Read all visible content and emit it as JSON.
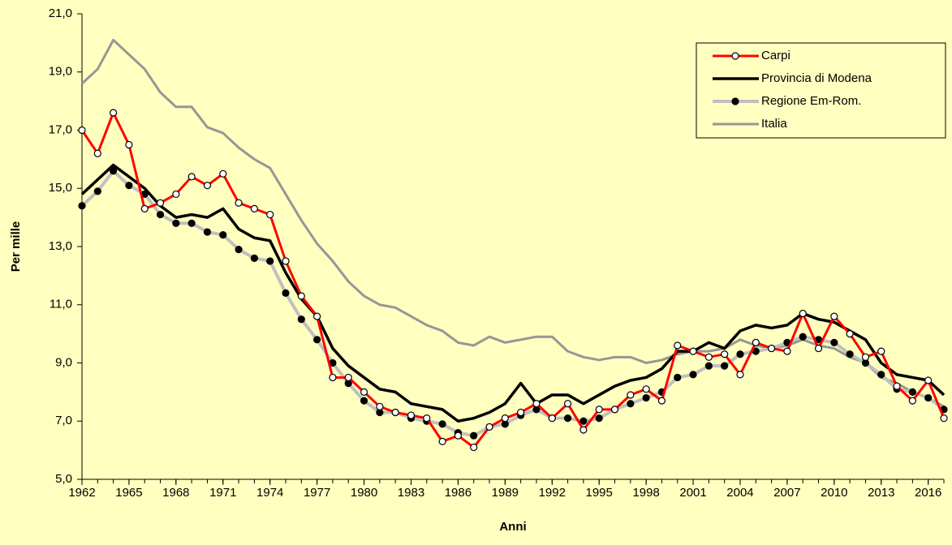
{
  "chart_data": {
    "type": "line",
    "xlabel": "Anni",
    "ylabel": "Per mille",
    "x": [
      1962,
      1963,
      1964,
      1965,
      1966,
      1967,
      1968,
      1969,
      1970,
      1971,
      1972,
      1973,
      1974,
      1975,
      1976,
      1977,
      1978,
      1979,
      1980,
      1981,
      1982,
      1983,
      1984,
      1985,
      1986,
      1987,
      1988,
      1989,
      1990,
      1991,
      1992,
      1993,
      1994,
      1995,
      1996,
      1997,
      1998,
      1999,
      2000,
      2001,
      2002,
      2003,
      2004,
      2005,
      2006,
      2007,
      2008,
      2009,
      2010,
      2011,
      2012,
      2013,
      2014,
      2015,
      2016,
      2017
    ],
    "xlim": [
      1962,
      2017
    ],
    "xticks": [
      1962,
      1965,
      1968,
      1971,
      1974,
      1977,
      1980,
      1983,
      1986,
      1989,
      1992,
      1995,
      1998,
      2001,
      2004,
      2007,
      2010,
      2013,
      2016
    ],
    "ylim": [
      5,
      21
    ],
    "yticks": [
      {
        "value": 5,
        "label": "5,0"
      },
      {
        "value": 7,
        "label": "7,0"
      },
      {
        "value": 9,
        "label": "9,0"
      },
      {
        "value": 11,
        "label": "11,0"
      },
      {
        "value": 13,
        "label": "13,0"
      },
      {
        "value": 15,
        "label": "15,0"
      },
      {
        "value": 17,
        "label": "17,0"
      },
      {
        "value": 19,
        "label": "19,0"
      },
      {
        "value": 21,
        "label": "21,0"
      }
    ],
    "legend": "upper right",
    "series": [
      {
        "name": "Carpi",
        "color": "#ff0000",
        "marker": "circle-open",
        "values": [
          17.0,
          16.2,
          17.6,
          16.5,
          14.3,
          14.5,
          14.8,
          15.4,
          15.1,
          15.5,
          14.5,
          14.3,
          14.1,
          12.5,
          11.3,
          10.6,
          8.5,
          8.5,
          8.0,
          7.5,
          7.3,
          7.2,
          7.1,
          6.3,
          6.5,
          6.1,
          6.8,
          7.1,
          7.3,
          7.6,
          7.1,
          7.6,
          6.7,
          7.4,
          7.4,
          7.9,
          8.1,
          7.7,
          9.6,
          9.4,
          9.2,
          9.3,
          8.6,
          9.7,
          9.5,
          9.4,
          10.7,
          9.5,
          10.6,
          10.0,
          9.2,
          9.4,
          8.2,
          7.7,
          8.4,
          7.1
        ]
      },
      {
        "name": "Provincia di Modena",
        "color": "#000000",
        "values": [
          14.8,
          15.3,
          15.8,
          15.4,
          15.0,
          14.4,
          14.0,
          14.1,
          14.0,
          14.3,
          13.6,
          13.3,
          13.2,
          12.1,
          11.2,
          10.6,
          9.5,
          8.9,
          8.5,
          8.1,
          8.0,
          7.6,
          7.5,
          7.4,
          7.0,
          7.1,
          7.3,
          7.6,
          8.3,
          7.6,
          7.9,
          7.9,
          7.6,
          7.9,
          8.2,
          8.4,
          8.5,
          8.8,
          9.4,
          9.4,
          9.7,
          9.5,
          10.1,
          10.3,
          10.2,
          10.3,
          10.7,
          10.5,
          10.4,
          10.1,
          9.8,
          9.0,
          8.6,
          8.5,
          8.4,
          7.9
        ]
      },
      {
        "name": "Regione Em-Rom.",
        "color": "#c0c0c0",
        "marker": "circle-filled",
        "values": [
          14.4,
          14.9,
          15.6,
          15.1,
          14.8,
          14.1,
          13.8,
          13.8,
          13.5,
          13.4,
          12.9,
          12.6,
          12.5,
          11.4,
          10.5,
          9.8,
          9.0,
          8.3,
          7.7,
          7.3,
          7.3,
          7.1,
          7.0,
          6.9,
          6.6,
          6.5,
          6.8,
          6.9,
          7.2,
          7.4,
          7.1,
          7.1,
          7.0,
          7.1,
          7.4,
          7.6,
          7.8,
          8.0,
          8.5,
          8.6,
          8.9,
          8.9,
          9.3,
          9.4,
          9.5,
          9.7,
          9.9,
          9.8,
          9.7,
          9.3,
          9.0,
          8.6,
          8.1,
          8.0,
          7.8,
          7.4
        ]
      },
      {
        "name": "Italia",
        "color": "#969696",
        "values": [
          18.6,
          19.1,
          20.1,
          19.6,
          19.1,
          18.3,
          17.8,
          17.8,
          17.1,
          16.9,
          16.4,
          16.0,
          15.7,
          14.8,
          13.9,
          13.1,
          12.5,
          11.8,
          11.3,
          11.0,
          10.9,
          10.6,
          10.3,
          10.1,
          9.7,
          9.6,
          9.9,
          9.7,
          9.8,
          9.9,
          9.9,
          9.4,
          9.2,
          9.1,
          9.2,
          9.2,
          9.0,
          9.1,
          9.3,
          9.4,
          9.4,
          9.5,
          9.8,
          9.6,
          9.5,
          9.6,
          9.8,
          9.6,
          9.5,
          9.2,
          9.0,
          8.5,
          8.3,
          8.0,
          7.8,
          7.5
        ]
      }
    ]
  }
}
